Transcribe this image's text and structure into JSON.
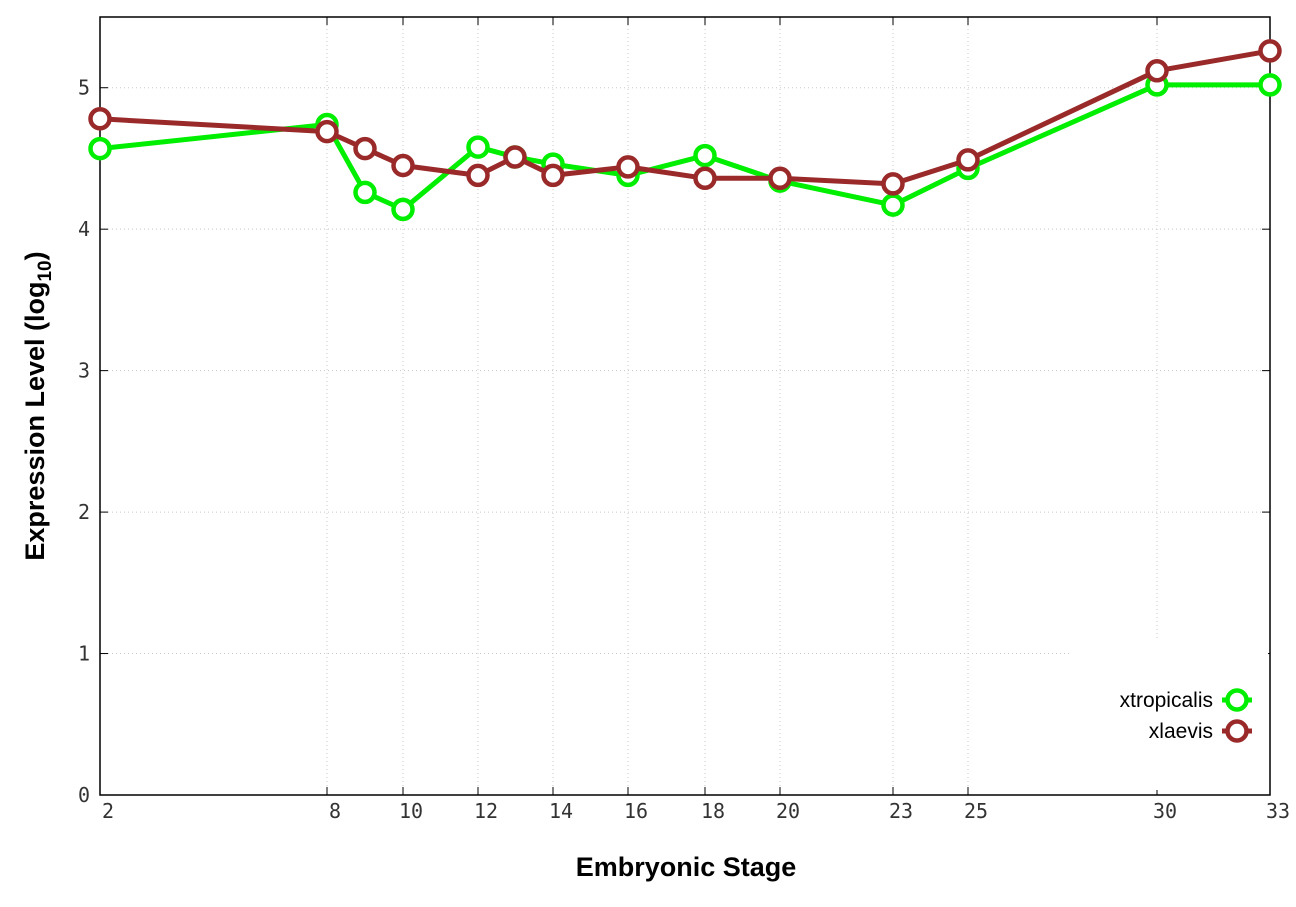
{
  "chart_data": {
    "type": "line",
    "xlabel": "Embryonic Stage",
    "ylabel_main": "Expression Level (log",
    "ylabel_sub": "10",
    "ylabel_close": ")",
    "x": [
      2,
      8,
      9,
      10,
      12,
      13,
      14,
      16,
      18,
      20,
      23,
      25,
      30,
      33
    ],
    "x_ticks": [
      2,
      8,
      10,
      12,
      14,
      16,
      18,
      20,
      23,
      25,
      30,
      33
    ],
    "x_tick_labels": [
      "2",
      "8",
      "10",
      "12",
      "14",
      "16",
      "18",
      "20",
      "23",
      "25",
      "30",
      "33"
    ],
    "y_ticks": [
      0,
      1,
      2,
      3,
      4,
      5
    ],
    "y_tick_labels": [
      "0",
      "1",
      "2",
      "3",
      "4",
      "5"
    ],
    "ylim": [
      0,
      5.5
    ],
    "grid": true,
    "legend_position": "bottom-right",
    "series": [
      {
        "name": "xtropicalis",
        "color": "#00ee00",
        "values": [
          4.57,
          4.74,
          4.26,
          4.14,
          4.58,
          4.51,
          4.46,
          4.38,
          4.52,
          4.34,
          4.17,
          4.43,
          5.02,
          5.02
        ]
      },
      {
        "name": "xlaevis",
        "color": "#9a2a2a",
        "values": [
          4.78,
          4.69,
          4.57,
          4.45,
          4.38,
          4.51,
          4.38,
          4.44,
          4.36,
          4.36,
          4.32,
          4.49,
          5.12,
          5.26
        ]
      }
    ]
  }
}
